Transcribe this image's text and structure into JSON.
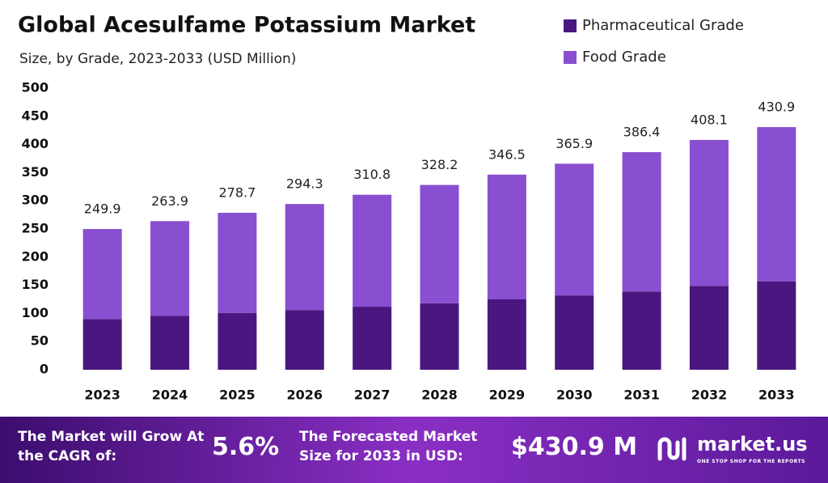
{
  "chart_data": {
    "type": "bar",
    "stacked": true,
    "title": "Global Acesulfame Potassium Market",
    "subtitle": "Size, by Grade, 2023-2033 (USD Million)",
    "categories": [
      "2023",
      "2024",
      "2025",
      "2026",
      "2027",
      "2028",
      "2029",
      "2030",
      "2031",
      "2032",
      "2033"
    ],
    "series": [
      {
        "name": "Pharmaceutical Grade",
        "color": "#4a1780",
        "values": [
          90,
          96,
          101,
          106,
          112,
          118,
          125,
          132,
          139,
          149,
          157
        ]
      },
      {
        "name": "Food Grade",
        "color": "#8a4fd0",
        "values": [
          159.9,
          167.9,
          177.7,
          188.3,
          198.8,
          210.2,
          221.5,
          233.9,
          247.4,
          259.1,
          273.9
        ]
      }
    ],
    "totals": [
      249.9,
      263.9,
      278.7,
      294.3,
      310.8,
      328.2,
      346.5,
      365.9,
      386.4,
      408.1,
      430.9
    ],
    "ylim": [
      0,
      500
    ],
    "yticks": [
      0,
      50,
      100,
      150,
      200,
      250,
      300,
      350,
      400,
      450,
      500
    ],
    "grid": false,
    "legend": "top-right"
  },
  "footer": {
    "cagr_text": "The Market will Grow At the CAGR of:",
    "cagr_value": "5.6%",
    "forecast_text": "The Forecasted Market Size for 2033 in USD:",
    "forecast_value": "$430.9 M",
    "brand": "market.us",
    "tagline": "ONE STOP SHOP FOR THE REPORTS"
  }
}
